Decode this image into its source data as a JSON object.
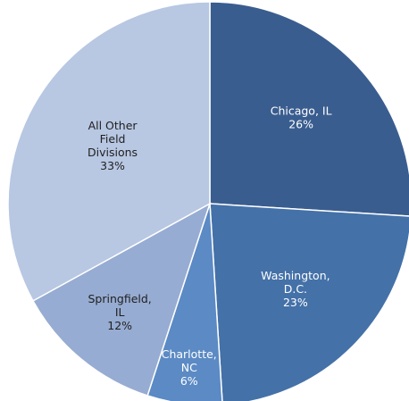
{
  "chart_data": {
    "type": "pie",
    "title": "",
    "slices": [
      {
        "label": [
          "Chicago, IL"
        ],
        "value": 26,
        "pct": "26%",
        "color": "#3a5d8f",
        "text_color": "#ffffff"
      },
      {
        "label": [
          "Washington,",
          "D.C."
        ],
        "value": 23,
        "pct": "23%",
        "color": "#4471a8",
        "text_color": "#ffffff"
      },
      {
        "label": [
          "Charlotte,",
          "NC"
        ],
        "value": 6,
        "pct": "6%",
        "color": "#5b8ac4",
        "text_color": "#ffffff"
      },
      {
        "label": [
          "Springfield,",
          "IL"
        ],
        "value": 12,
        "pct": "12%",
        "color": "#97acd2",
        "text_color": "#1f1f1f"
      },
      {
        "label": [
          "All Other",
          "Field",
          "Divisions"
        ],
        "value": 33,
        "pct": "33%",
        "color": "#b8c7e2",
        "text_color": "#1f1f1f"
      }
    ]
  }
}
